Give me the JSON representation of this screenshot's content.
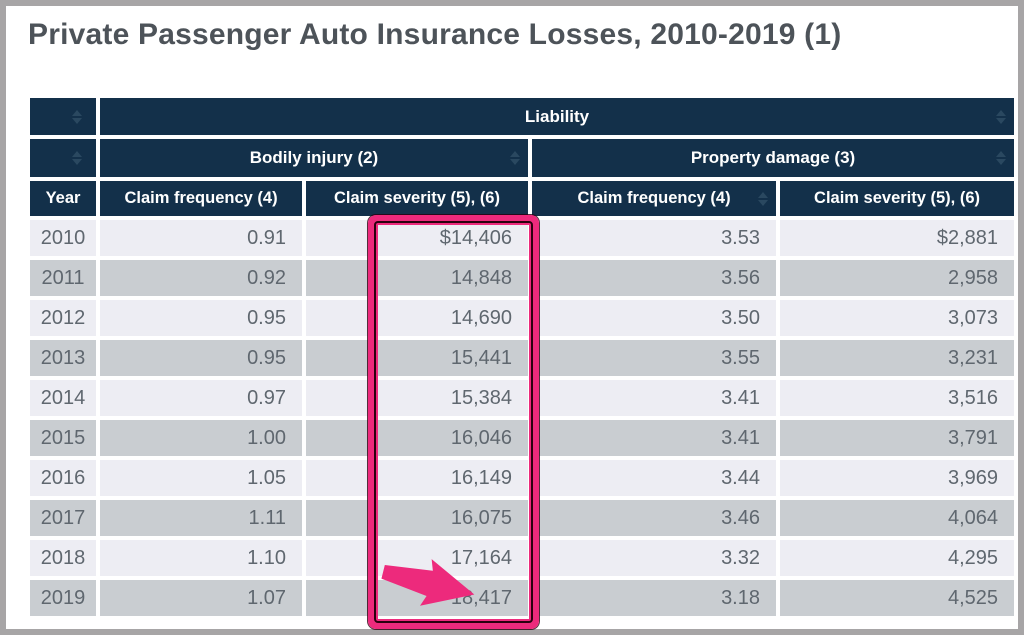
{
  "page": {
    "title": "Private Passenger Auto Insurance Losses, 2010-2019 (1)"
  },
  "table": {
    "header": {
      "liability": "Liability",
      "bodily_injury": "Bodily injury (2)",
      "property_damage": "Property damage (3)",
      "year": "Year",
      "bi_claim_frequency": "Claim frequency (4)",
      "bi_claim_severity": "Claim severity (5), (6)",
      "pd_claim_frequency": "Claim frequency (4)",
      "pd_claim_severity": "Claim severity (5), (6)"
    },
    "rows": [
      {
        "year": "2010",
        "bi_freq": "0.91",
        "bi_sev": "$14,406",
        "pd_freq": "3.53",
        "pd_sev": "$2,881"
      },
      {
        "year": "2011",
        "bi_freq": "0.92",
        "bi_sev": "14,848",
        "pd_freq": "3.56",
        "pd_sev": "2,958"
      },
      {
        "year": "2012",
        "bi_freq": "0.95",
        "bi_sev": "14,690",
        "pd_freq": "3.50",
        "pd_sev": "3,073"
      },
      {
        "year": "2013",
        "bi_freq": "0.95",
        "bi_sev": "15,441",
        "pd_freq": "3.55",
        "pd_sev": "3,231"
      },
      {
        "year": "2014",
        "bi_freq": "0.97",
        "bi_sev": "15,384",
        "pd_freq": "3.41",
        "pd_sev": "3,516"
      },
      {
        "year": "2015",
        "bi_freq": "1.00",
        "bi_sev": "16,046",
        "pd_freq": "3.41",
        "pd_sev": "3,791"
      },
      {
        "year": "2016",
        "bi_freq": "1.05",
        "bi_sev": "16,149",
        "pd_freq": "3.44",
        "pd_sev": "3,969"
      },
      {
        "year": "2017",
        "bi_freq": "1.11",
        "bi_sev": "16,075",
        "pd_freq": "3.46",
        "pd_sev": "4,064"
      },
      {
        "year": "2018",
        "bi_freq": "1.10",
        "bi_sev": "17,164",
        "pd_freq": "3.32",
        "pd_sev": "4,295"
      },
      {
        "year": "2019",
        "bi_freq": "1.07",
        "bi_sev": "18,417",
        "pd_freq": "3.18",
        "pd_sev": "4,525"
      }
    ]
  },
  "annotation": {
    "highlighted_column": "bi_claim_severity",
    "arrow_points_to": "18,417",
    "highlight_color": "#ed2a7c"
  },
  "icons": {
    "sort": "sort-arrows",
    "arrow": "right-arrow"
  },
  "colors": {
    "header_bg": "#13304a",
    "row_light": "#ededf3",
    "row_alt": "#c9cdd1",
    "cell_text": "#5f676f",
    "title_text": "#4d5359",
    "frame_gray": "#a7a5a6",
    "highlight_pink": "#ed2a7c"
  }
}
